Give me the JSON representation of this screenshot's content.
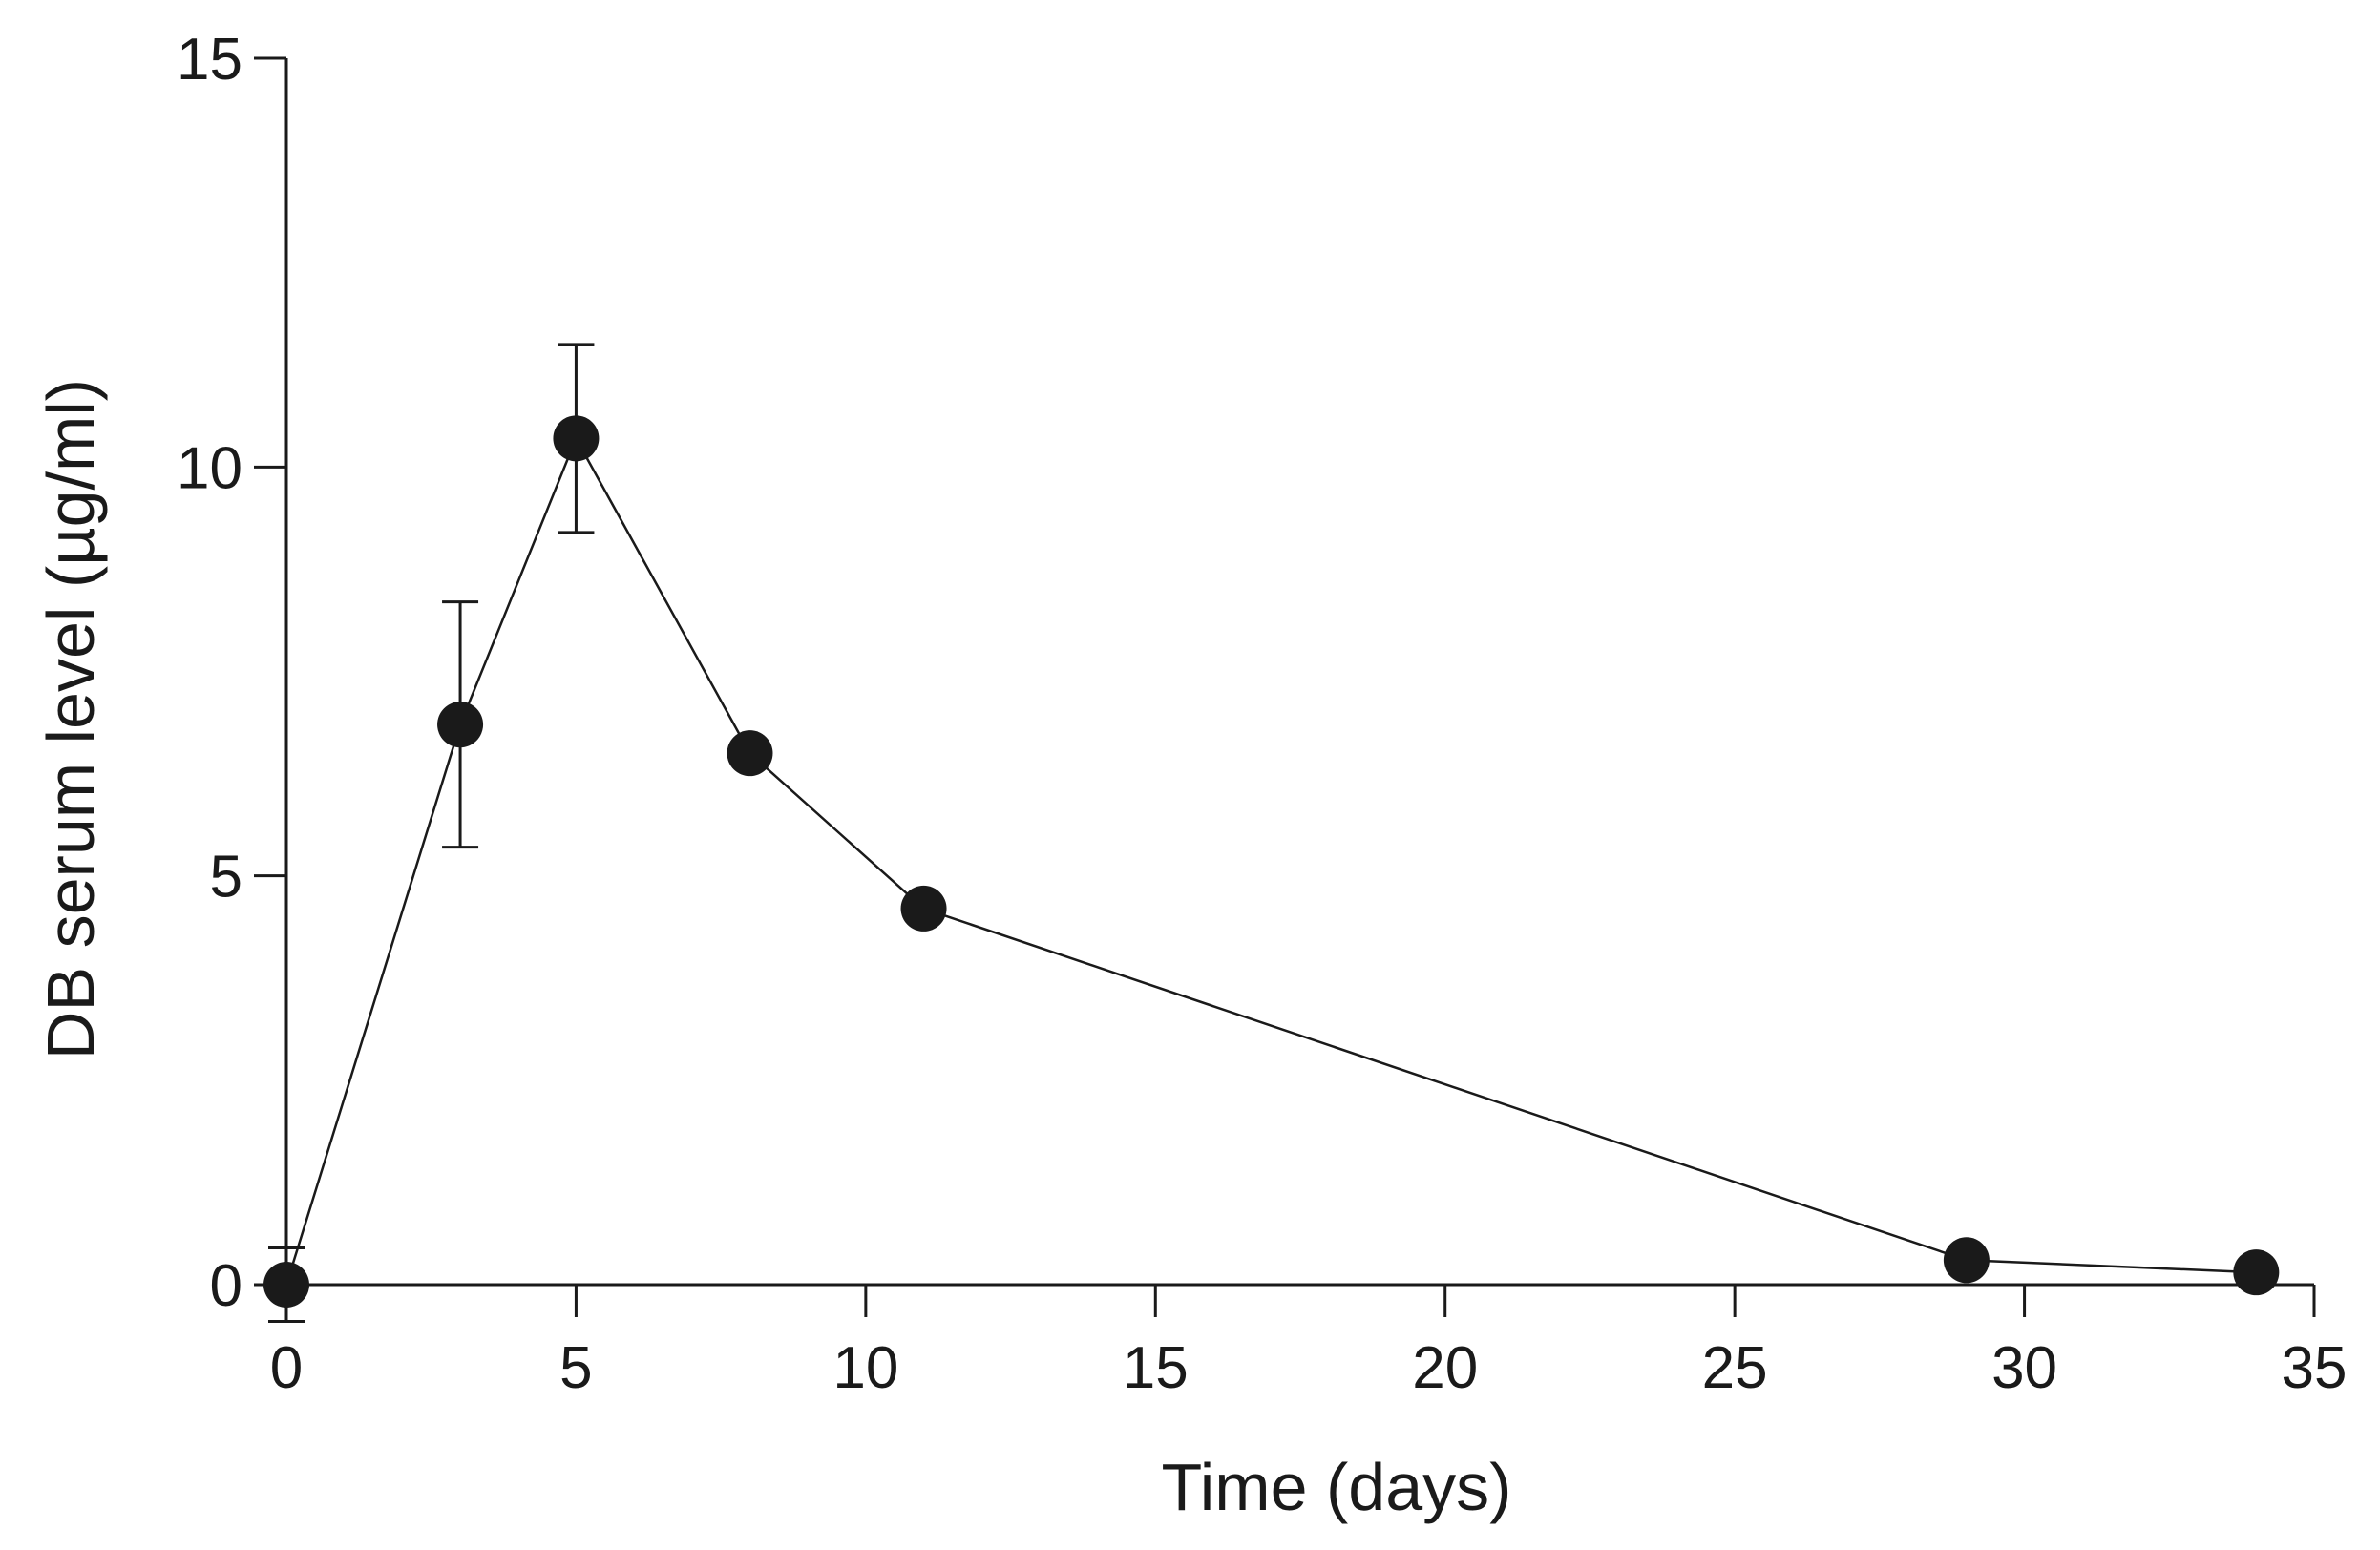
{
  "chart_data": {
    "type": "line",
    "title": "",
    "xlabel": "Time (days)",
    "ylabel": "DB serum level (µg/ml)",
    "xlim": [
      0,
      35
    ],
    "ylim": [
      0,
      15
    ],
    "xticks": [
      0,
      5,
      10,
      15,
      20,
      25,
      30,
      35
    ],
    "yticks": [
      0,
      5,
      10,
      15
    ],
    "xtick_labels": [
      "0",
      "5",
      "10",
      "15",
      "20",
      "25",
      "30",
      "35"
    ],
    "ytick_labels": [
      "0",
      "5",
      "10",
      "15"
    ],
    "grid": false,
    "series": [
      {
        "name": "DB serum level",
        "marker": "filled-circle",
        "color": "#1a1a1a",
        "x": [
          0,
          3,
          5,
          8,
          11,
          29,
          34
        ],
        "y": [
          0,
          6.85,
          10.35,
          6.5,
          4.6,
          0.3,
          0.15
        ],
        "err": [
          0.45,
          1.5,
          1.15,
          0,
          0,
          0,
          0
        ]
      }
    ]
  }
}
